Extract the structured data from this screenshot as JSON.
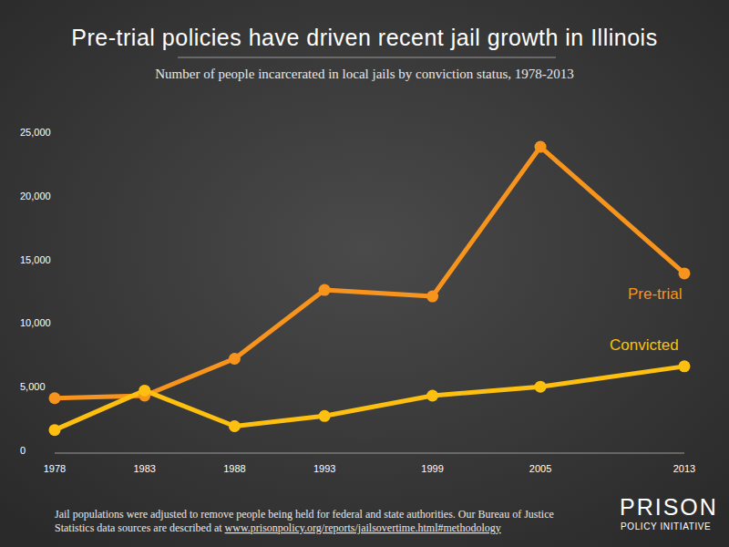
{
  "chart_data": {
    "type": "line",
    "title": "Pre-trial policies have driven recent jail growth in Illinois",
    "subtitle": "Number of people incarcerated in local jails by conviction status, 1978-2013",
    "x": [
      1978,
      1983,
      1988,
      1993,
      1999,
      2005,
      2013
    ],
    "xlim": [
      1978,
      2013
    ],
    "xticks": [
      1978,
      1983,
      1988,
      1993,
      1999,
      2005,
      2013
    ],
    "ylim": [
      0,
      25000
    ],
    "yticks": [
      0,
      {
        "value": 5000,
        "label": "5,000"
      },
      {
        "value": 10000,
        "label": "10,000"
      },
      {
        "value": 15000,
        "label": "15,000"
      },
      {
        "value": 20000,
        "label": "20,000"
      },
      {
        "value": 25000,
        "label": "25,000"
      }
    ],
    "grid": false,
    "marker": "circle",
    "series": [
      {
        "name": "Pre-trial",
        "color": "#f7941d",
        "values": [
          4100,
          4300,
          7200,
          12600,
          12100,
          23850,
          13900
        ]
      },
      {
        "name": "Convicted",
        "color": "#fdc010",
        "values": [
          1600,
          4700,
          1900,
          2700,
          4300,
          5000,
          6600
        ]
      }
    ],
    "notes": [
      "Jail populations were adjusted to remove people being held for federal and state authorities. Our Bureau of Justice",
      "Statistics data sources are described at "
    ],
    "note_link": "www.prisonpolicy.org/reports/jailsovertime.html#methodology",
    "logo": [
      "PRISON",
      "POLICY INITIATIVE"
    ]
  }
}
